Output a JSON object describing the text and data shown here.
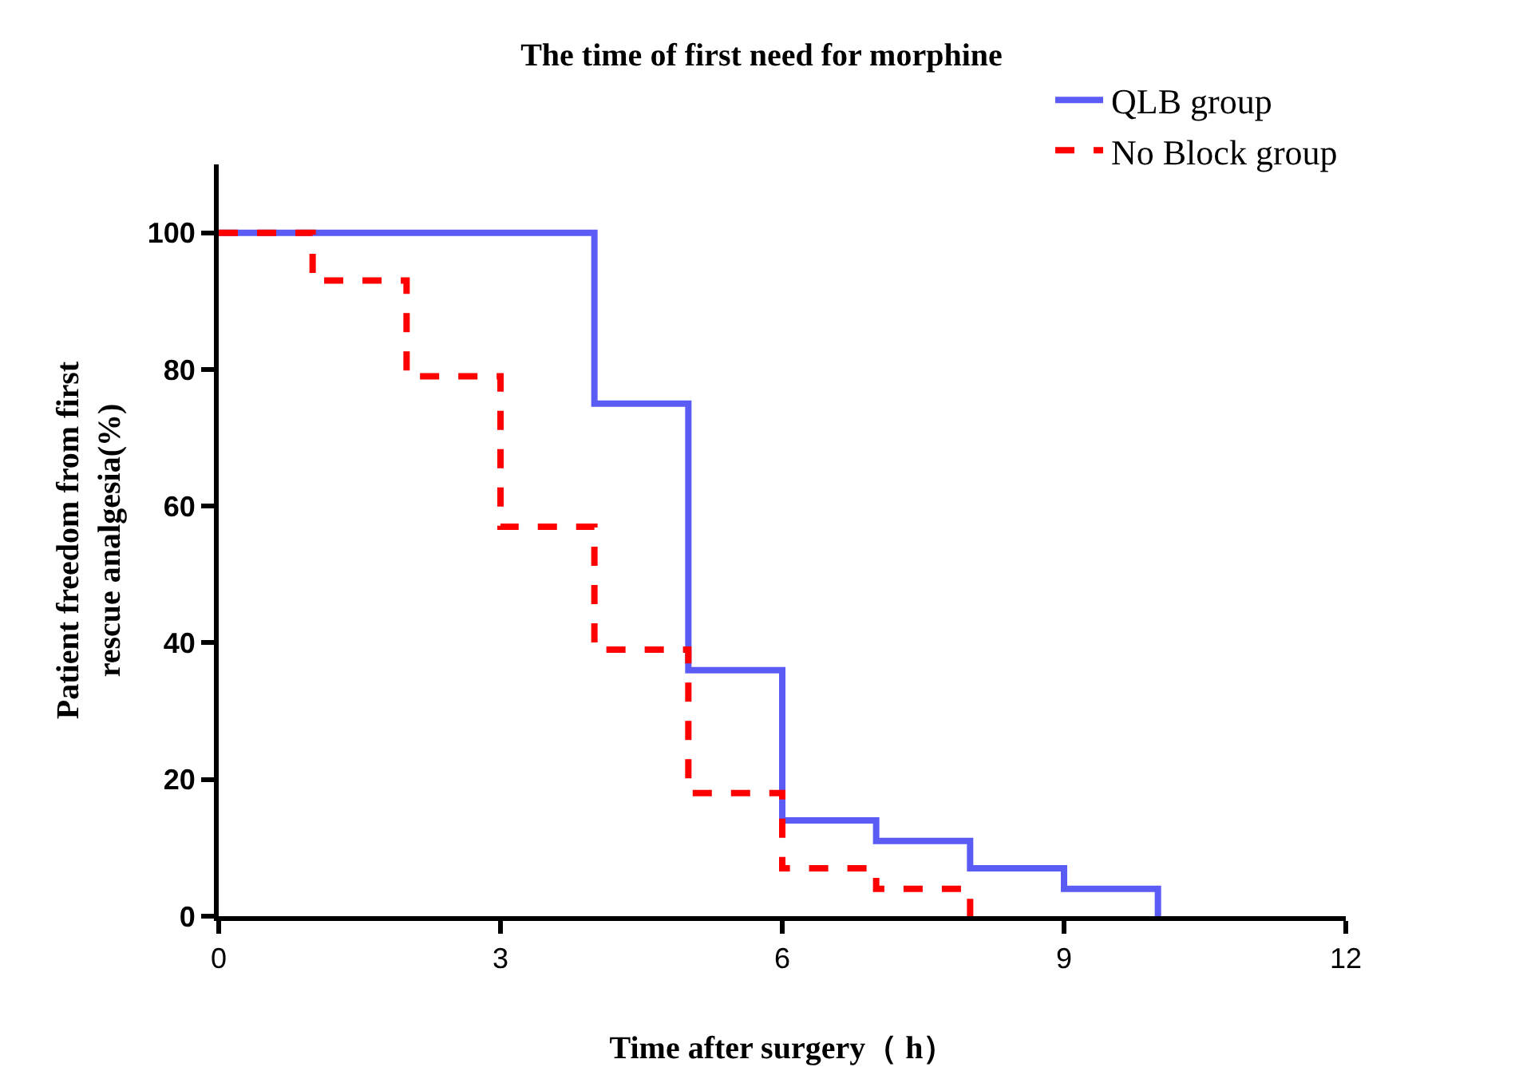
{
  "chart_data": {
    "type": "step",
    "title": "The time of first need for morphine",
    "xlabel": "Time after surgery（ h）",
    "ylabel": "Patient freedom from first\nrescue analgesia(%)",
    "series": [
      {
        "name": "QLB group",
        "color": "#5b5bf5",
        "line_style": "solid",
        "x": [
          0,
          4,
          5,
          6,
          7,
          8,
          9,
          10
        ],
        "values": [
          100,
          75,
          36,
          14,
          11,
          7,
          4,
          0
        ]
      },
      {
        "name": "No Block group",
        "color": "#ff0000",
        "line_style": "dashed",
        "x": [
          0,
          1,
          2,
          3,
          4,
          5,
          6,
          7,
          8
        ],
        "values": [
          100,
          93,
          79,
          57,
          39,
          18,
          7,
          4,
          0
        ]
      }
    ],
    "xlim": [
      0,
      12
    ],
    "xticks": [
      0,
      3,
      6,
      9,
      12
    ],
    "ylim": [
      0,
      110
    ],
    "yticks": [
      0,
      20,
      40,
      60,
      80,
      100
    ],
    "grid": false,
    "legend": "top right",
    "marker": "none"
  }
}
